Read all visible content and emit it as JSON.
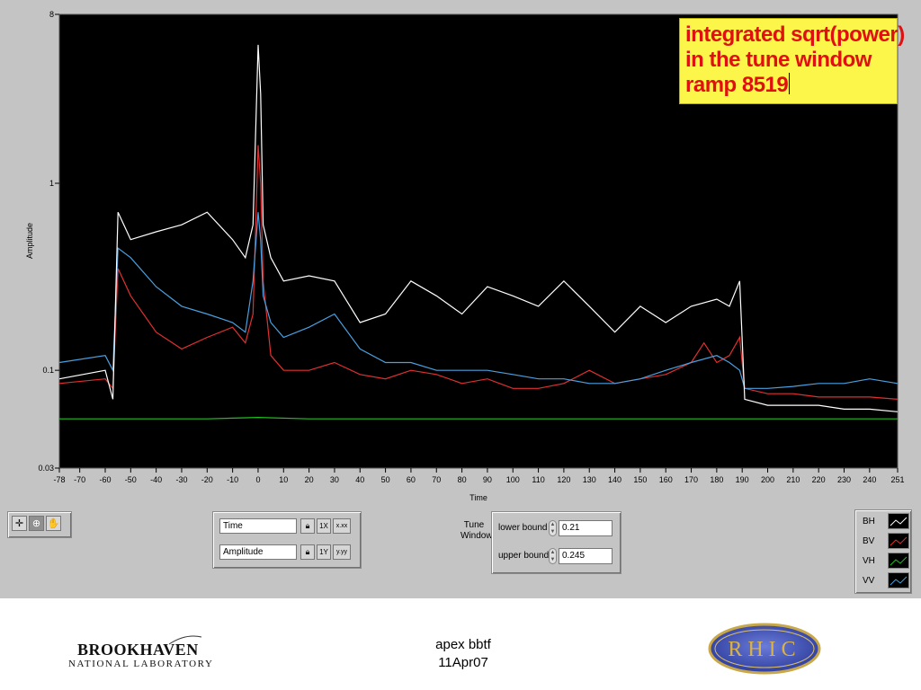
{
  "annotation": {
    "line1": "integrated sqrt(power)",
    "line2": "in the tune window",
    "line3": "ramp 8519"
  },
  "plot": {
    "y_axis_label": "Amplitude",
    "x_axis_label": "Time",
    "y_ticks": [
      "8",
      "1",
      "0.1",
      "0.03"
    ],
    "x_ticks": [
      "-78",
      "-70",
      "-60",
      "-50",
      "-40",
      "-30",
      "-20",
      "-10",
      "0",
      "10",
      "20",
      "30",
      "40",
      "50",
      "60",
      "70",
      "80",
      "90",
      "100",
      "110",
      "120",
      "130",
      "140",
      "150",
      "160",
      "170",
      "180",
      "190",
      "200",
      "210",
      "220",
      "230",
      "240",
      "251"
    ],
    "background": "#000000"
  },
  "chart_data": {
    "type": "line",
    "xlabel": "Time",
    "ylabel": "Amplitude",
    "xlim": [
      -78,
      251
    ],
    "ylim": [
      0.03,
      8
    ],
    "y_scale": "log",
    "grid": false,
    "legend_placement": "bottom-right",
    "series": [
      {
        "name": "BH",
        "color": "#ffffff",
        "x": [
          -78,
          -60,
          -57,
          -55,
          -50,
          -40,
          -30,
          -20,
          -10,
          -5,
          -2,
          0,
          1,
          2,
          5,
          10,
          20,
          30,
          40,
          50,
          60,
          70,
          80,
          90,
          100,
          110,
          120,
          130,
          140,
          150,
          160,
          170,
          180,
          185,
          189,
          191,
          200,
          210,
          220,
          230,
          240,
          251
        ],
        "y": [
          0.09,
          0.1,
          0.07,
          0.7,
          0.5,
          0.55,
          0.6,
          0.7,
          0.5,
          0.4,
          0.6,
          5.5,
          3.0,
          0.6,
          0.4,
          0.3,
          0.32,
          0.3,
          0.18,
          0.2,
          0.3,
          0.25,
          0.2,
          0.28,
          0.25,
          0.22,
          0.3,
          0.22,
          0.16,
          0.22,
          0.18,
          0.22,
          0.24,
          0.22,
          0.3,
          0.07,
          0.065,
          0.065,
          0.065,
          0.062,
          0.062,
          0.06
        ]
      },
      {
        "name": "BV",
        "color": "#e03030",
        "x": [
          -78,
          -60,
          -57,
          -55,
          -50,
          -40,
          -30,
          -20,
          -10,
          -5,
          -2,
          0,
          1,
          2,
          5,
          10,
          20,
          30,
          40,
          50,
          60,
          70,
          80,
          90,
          100,
          110,
          120,
          130,
          140,
          150,
          160,
          170,
          175,
          180,
          185,
          189,
          191,
          200,
          210,
          220,
          230,
          240,
          251
        ],
        "y": [
          0.085,
          0.09,
          0.08,
          0.35,
          0.25,
          0.16,
          0.13,
          0.15,
          0.17,
          0.14,
          0.2,
          1.6,
          1.0,
          0.3,
          0.12,
          0.1,
          0.1,
          0.11,
          0.095,
          0.09,
          0.1,
          0.095,
          0.085,
          0.09,
          0.08,
          0.08,
          0.085,
          0.1,
          0.085,
          0.09,
          0.095,
          0.11,
          0.14,
          0.11,
          0.12,
          0.15,
          0.08,
          0.075,
          0.075,
          0.072,
          0.072,
          0.072,
          0.07
        ]
      },
      {
        "name": "VH",
        "color": "#20c020",
        "x": [
          -78,
          -60,
          -40,
          -20,
          0,
          20,
          40,
          60,
          80,
          100,
          120,
          140,
          160,
          180,
          190,
          200,
          220,
          240,
          251
        ],
        "y": [
          0.055,
          0.055,
          0.055,
          0.055,
          0.056,
          0.055,
          0.055,
          0.055,
          0.055,
          0.055,
          0.055,
          0.055,
          0.055,
          0.055,
          0.055,
          0.055,
          0.055,
          0.055,
          0.055
        ]
      },
      {
        "name": "VV",
        "color": "#4aa0e0",
        "x": [
          -78,
          -60,
          -57,
          -55,
          -50,
          -40,
          -30,
          -20,
          -10,
          -5,
          -2,
          0,
          1,
          2,
          5,
          10,
          20,
          30,
          40,
          50,
          60,
          70,
          80,
          90,
          100,
          110,
          120,
          130,
          140,
          150,
          160,
          170,
          180,
          185,
          189,
          191,
          200,
          210,
          220,
          230,
          240,
          251
        ],
        "y": [
          0.11,
          0.12,
          0.1,
          0.45,
          0.4,
          0.28,
          0.22,
          0.2,
          0.18,
          0.16,
          0.3,
          0.7,
          0.5,
          0.25,
          0.18,
          0.15,
          0.17,
          0.2,
          0.13,
          0.11,
          0.11,
          0.1,
          0.1,
          0.1,
          0.095,
          0.09,
          0.09,
          0.085,
          0.085,
          0.09,
          0.1,
          0.11,
          0.12,
          0.11,
          0.1,
          0.08,
          0.08,
          0.082,
          0.085,
          0.085,
          0.09,
          0.085
        ]
      }
    ]
  },
  "tools": {
    "items": [
      "crosshair",
      "zoom",
      "pan"
    ]
  },
  "scales": {
    "x_name": "Time",
    "y_name": "Amplitude",
    "x_format_label": "x.xx",
    "y_format_label": "y.yy",
    "x_scale_label": "1X",
    "y_scale_label": "1Y"
  },
  "tune_window": {
    "title_line1": "Tune",
    "title_line2": "Window",
    "lower_label": "lower bound",
    "lower_value": "0.21",
    "upper_label": "upper bound",
    "upper_value": "0.245"
  },
  "legend": {
    "entries": [
      {
        "name": "BH",
        "color": "#ffffff"
      },
      {
        "name": "BV",
        "color": "#e03030"
      },
      {
        "name": "VH",
        "color": "#20c020"
      },
      {
        "name": "VV",
        "color": "#4aa0e0"
      }
    ]
  },
  "footer": {
    "line1": "apex bbtf",
    "line2": "11Apr07",
    "bnl_line1": "BROOKHAVEN",
    "bnl_line2": "NATIONAL LABORATORY",
    "rhic_text": "RHIC"
  }
}
